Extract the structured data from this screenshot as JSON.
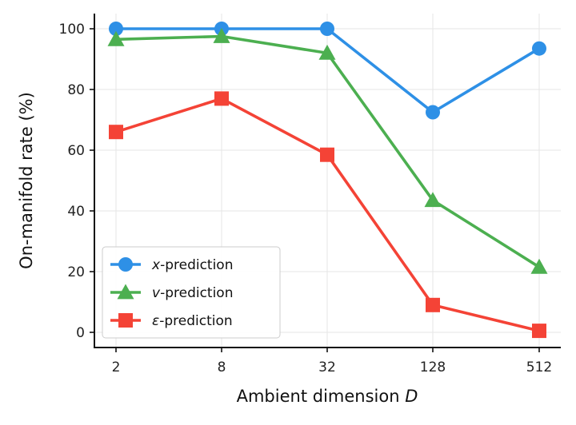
{
  "chart_data": {
    "type": "line",
    "title": "",
    "xlabel": "Ambient dimension ",
    "xlabel_var": "D",
    "ylabel": "On-manifold rate (%)",
    "categories": [
      "2",
      "8",
      "32",
      "128",
      "512"
    ],
    "ylim": [
      -5,
      105
    ],
    "yticks": [
      0,
      20,
      40,
      60,
      80,
      100
    ],
    "grid": true,
    "legend_position": "lower-left",
    "series": [
      {
        "name_var": "x",
        "name": "-prediction",
        "values": [
          100,
          100,
          100,
          72.5,
          93.5
        ],
        "color": "#2e90e6",
        "marker": "circle"
      },
      {
        "name_var": "v",
        "name": "-prediction",
        "values": [
          96.5,
          97.5,
          92,
          43.5,
          21.5
        ],
        "color": "#4caf50",
        "marker": "triangle"
      },
      {
        "name_var": "ε",
        "name": "-prediction",
        "values": [
          66,
          77,
          58.5,
          9,
          0.5
        ],
        "color": "#f44336",
        "marker": "square"
      }
    ]
  }
}
